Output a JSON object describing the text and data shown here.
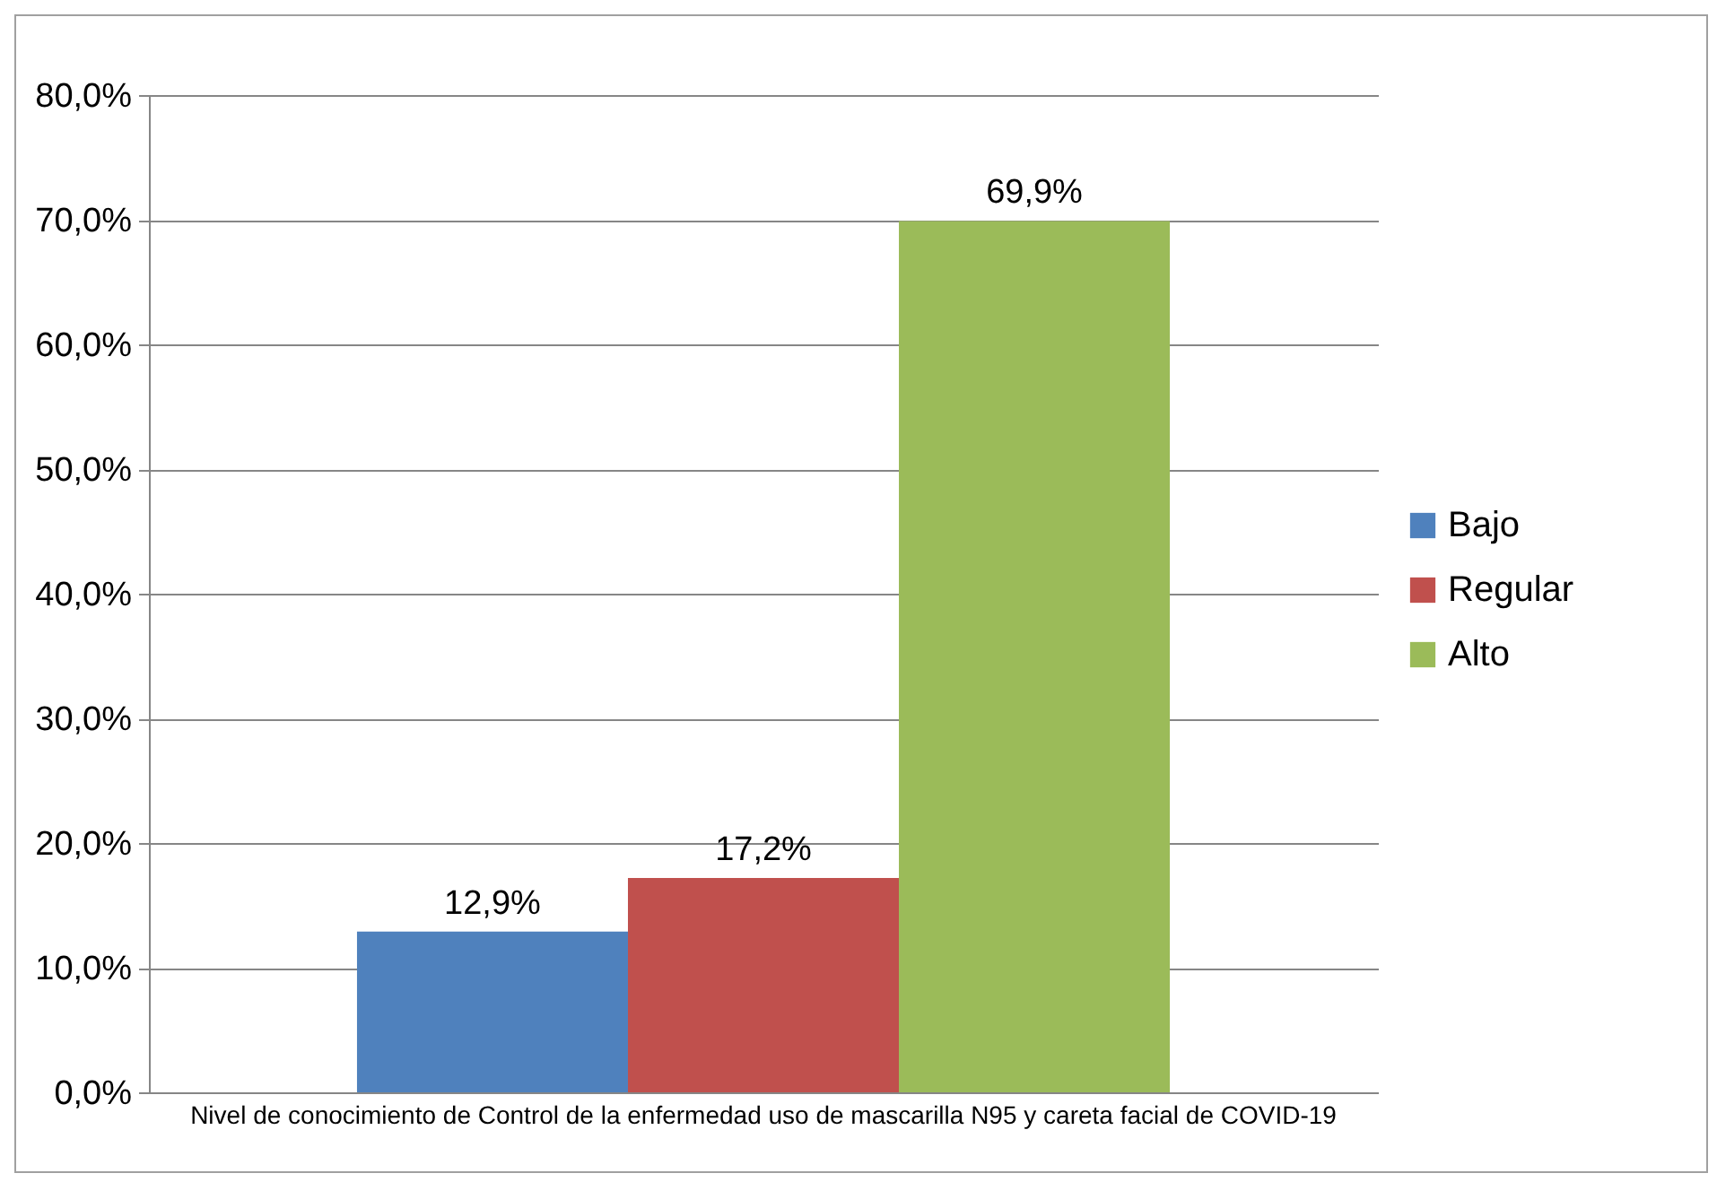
{
  "chart_data": {
    "type": "bar",
    "categories": [
      "Nivel de conocimiento de Control de la enfermedad uso de  mascarilla N95 y careta facial de COVID-19"
    ],
    "series": [
      {
        "name": "Bajo",
        "color": "#4f81bd",
        "values": [
          12.9
        ],
        "value_labels": [
          "12,9%"
        ]
      },
      {
        "name": "Regular",
        "color": "#c0504d",
        "values": [
          17.2
        ],
        "value_labels": [
          "17,2%"
        ]
      },
      {
        "name": "Alto",
        "color": "#9bbb59",
        "values": [
          69.9
        ],
        "value_labels": [
          "69,9%"
        ]
      }
    ],
    "ylim": [
      0,
      80
    ],
    "yticks": [
      {
        "value": 0,
        "label": "0,0%"
      },
      {
        "value": 10,
        "label": "10,0%"
      },
      {
        "value": 20,
        "label": "20,0%"
      },
      {
        "value": 30,
        "label": "30,0%"
      },
      {
        "value": 40,
        "label": "40,0%"
      },
      {
        "value": 50,
        "label": "50,0%"
      },
      {
        "value": 60,
        "label": "60,0%"
      },
      {
        "value": 70,
        "label": "70,0%"
      },
      {
        "value": 80,
        "label": "80,0%"
      }
    ],
    "grid": "y",
    "legend": "right"
  }
}
